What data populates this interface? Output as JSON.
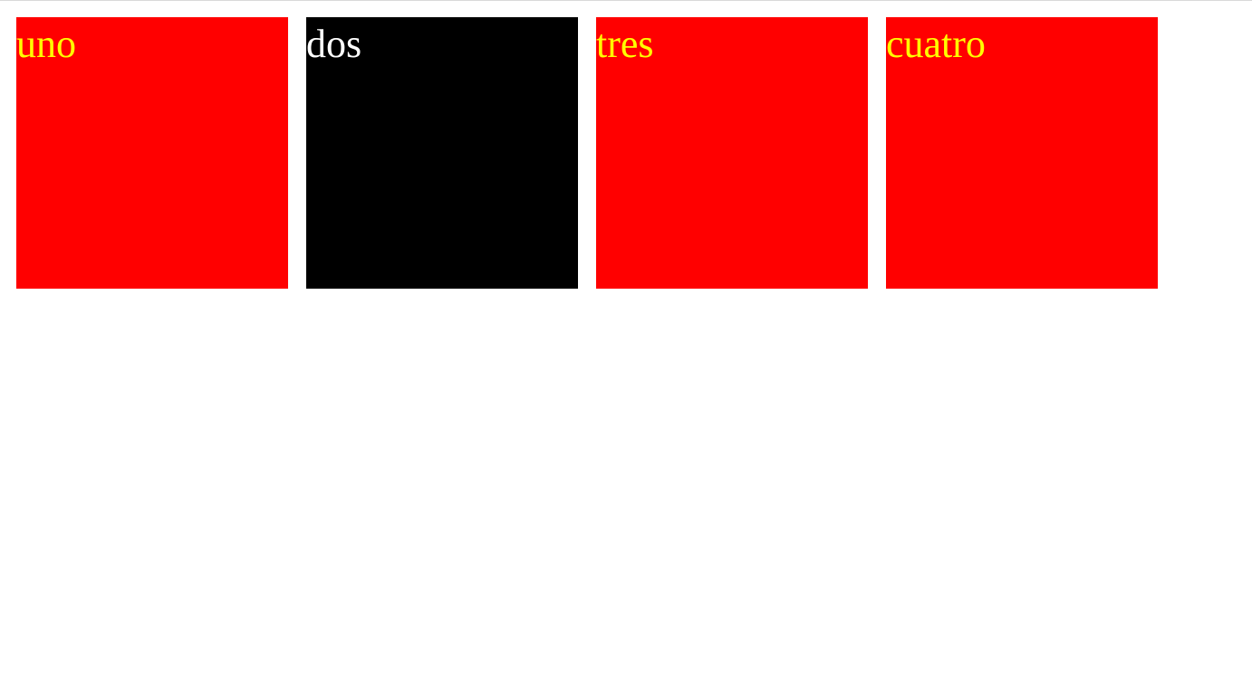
{
  "boxes": [
    {
      "label": "uno",
      "background": "#ff0000",
      "text_color": "#ffff00"
    },
    {
      "label": "dos",
      "background": "#000000",
      "text_color": "#ffffff"
    },
    {
      "label": "tres",
      "background": "#ff0000",
      "text_color": "#ffff00"
    },
    {
      "label": "cuatro",
      "background": "#ff0000",
      "text_color": "#ffff00"
    }
  ]
}
